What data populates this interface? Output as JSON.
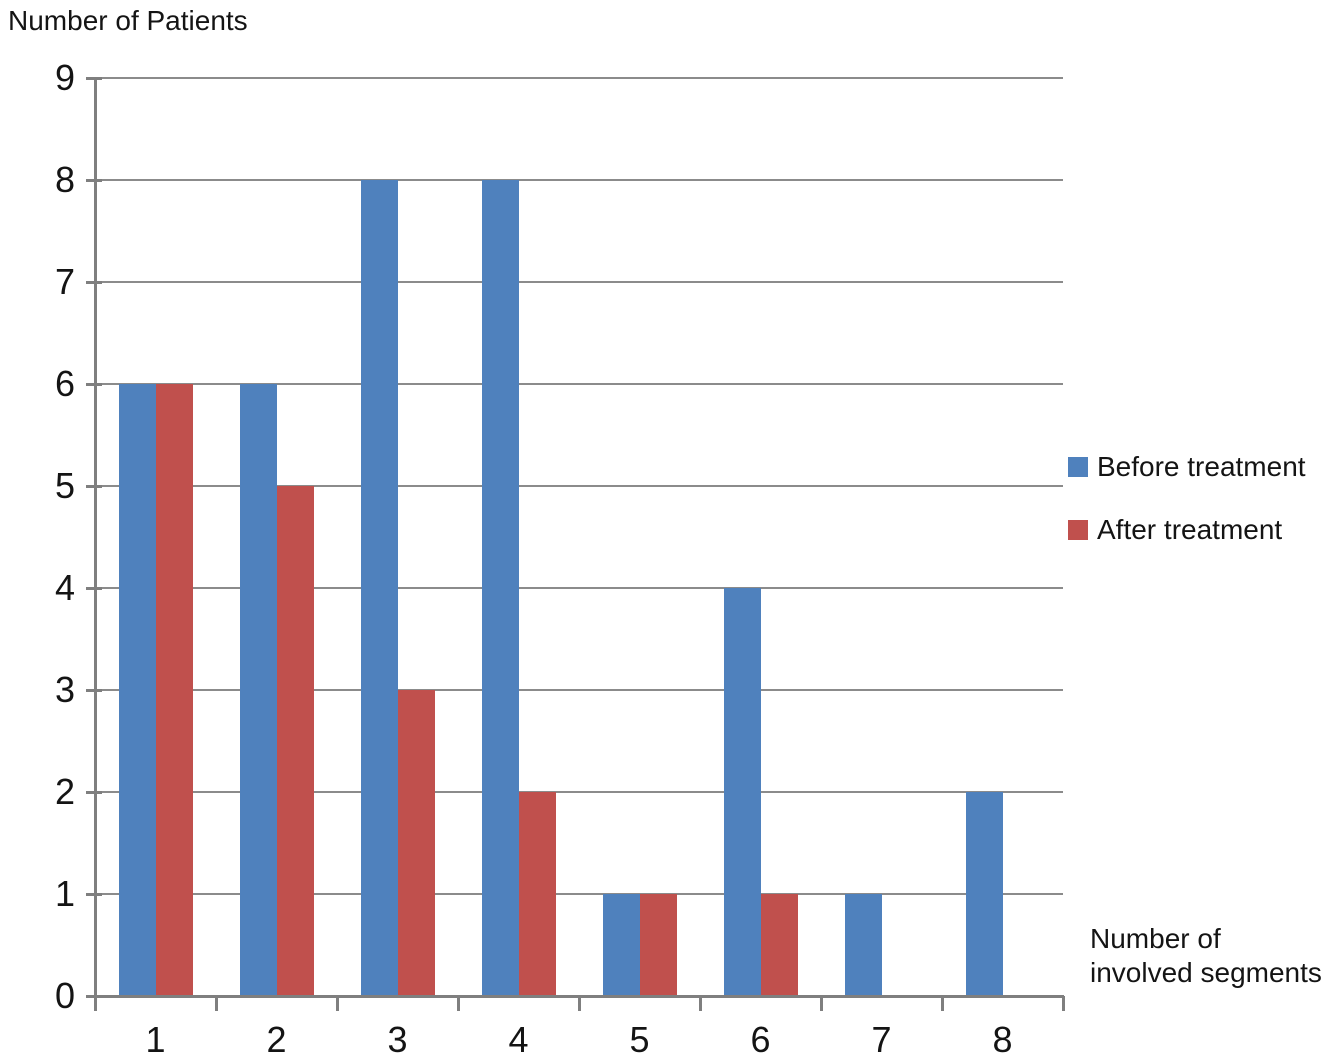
{
  "chart_data": {
    "type": "bar",
    "title": "",
    "y_axis_title": "Number of Patients",
    "x_axis_title_lines": [
      "Number of",
      "involved segments"
    ],
    "categories": [
      "1",
      "2",
      "3",
      "4",
      "5",
      "6",
      "7",
      "8"
    ],
    "series": [
      {
        "name": "Before treatment",
        "color": "#4F81BD",
        "values": [
          6,
          6,
          8,
          8,
          1,
          4,
          1,
          2
        ]
      },
      {
        "name": "After treatment",
        "color": "#C0504D",
        "values": [
          6,
          5,
          3,
          2,
          1,
          1,
          0,
          0
        ]
      }
    ],
    "ylim": [
      0,
      9
    ],
    "y_ticks": [
      0,
      1,
      2,
      3,
      4,
      5,
      6,
      7,
      8,
      9
    ],
    "grid": true,
    "legend_position": "right",
    "gridline_color": "#8B8B8B",
    "axis_color": "#7F7F7F",
    "background": "#FFFFFF"
  }
}
